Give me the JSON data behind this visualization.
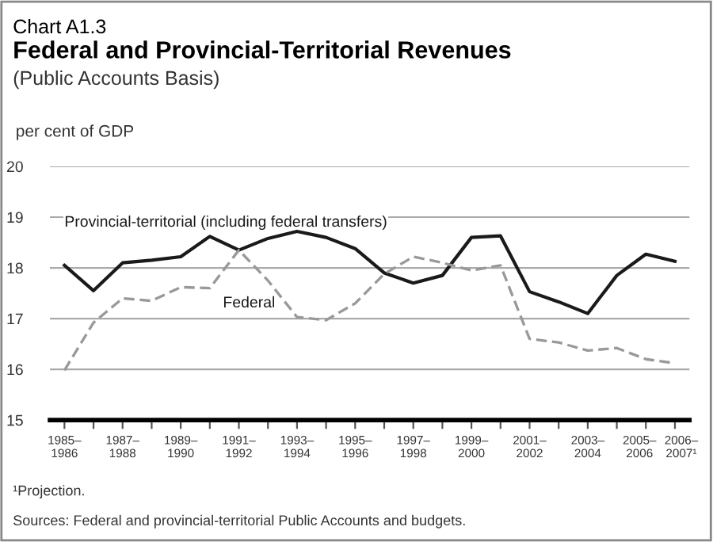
{
  "chart_data": {
    "type": "line",
    "title": "Federal and Provincial-Territorial Revenues",
    "subtitle": "Chart A1.3\n(Public Accounts Basis)",
    "ylabel": "per cent of GDP",
    "categories": [
      "1985–\n1986",
      null,
      "1987–\n1988",
      null,
      "1989–\n1990",
      null,
      "1991–\n1992",
      null,
      "1993–\n1994",
      null,
      "1995–\n1996",
      null,
      "1997–\n1998",
      null,
      "1999–\n2000",
      null,
      "2001–\n2002",
      null,
      "2003–\n2004",
      null,
      "2005–\n2006",
      "2006–\n2007¹"
    ],
    "series": [
      {
        "name": "Provincial-territorial (including federal transfers)",
        "color": "#1a1a1a",
        "line_style": "solid",
        "values": [
          18.05,
          17.55,
          18.1,
          18.15,
          18.22,
          18.62,
          18.35,
          18.58,
          18.72,
          18.6,
          18.38,
          17.9,
          17.7,
          17.85,
          18.6,
          18.63,
          17.53,
          17.33,
          17.1,
          17.85,
          18.27,
          18.13
        ]
      },
      {
        "name": "Federal",
        "color": "#999999",
        "line_style": "dashed",
        "values": [
          15.98,
          16.92,
          17.4,
          17.35,
          17.62,
          17.6,
          18.35,
          17.75,
          17.03,
          16.97,
          17.3,
          17.88,
          18.22,
          18.1,
          17.95,
          18.05,
          16.6,
          16.53,
          16.37,
          16.42,
          16.2,
          16.12
        ]
      }
    ],
    "ylim": [
      15,
      20
    ],
    "yticks": [
      15,
      16,
      17,
      18,
      19,
      20
    ],
    "grid": "y",
    "legend": false,
    "annotations": [
      "¹Projection.",
      "Sources: Federal and provincial-territorial Public Accounts and budgets."
    ]
  }
}
